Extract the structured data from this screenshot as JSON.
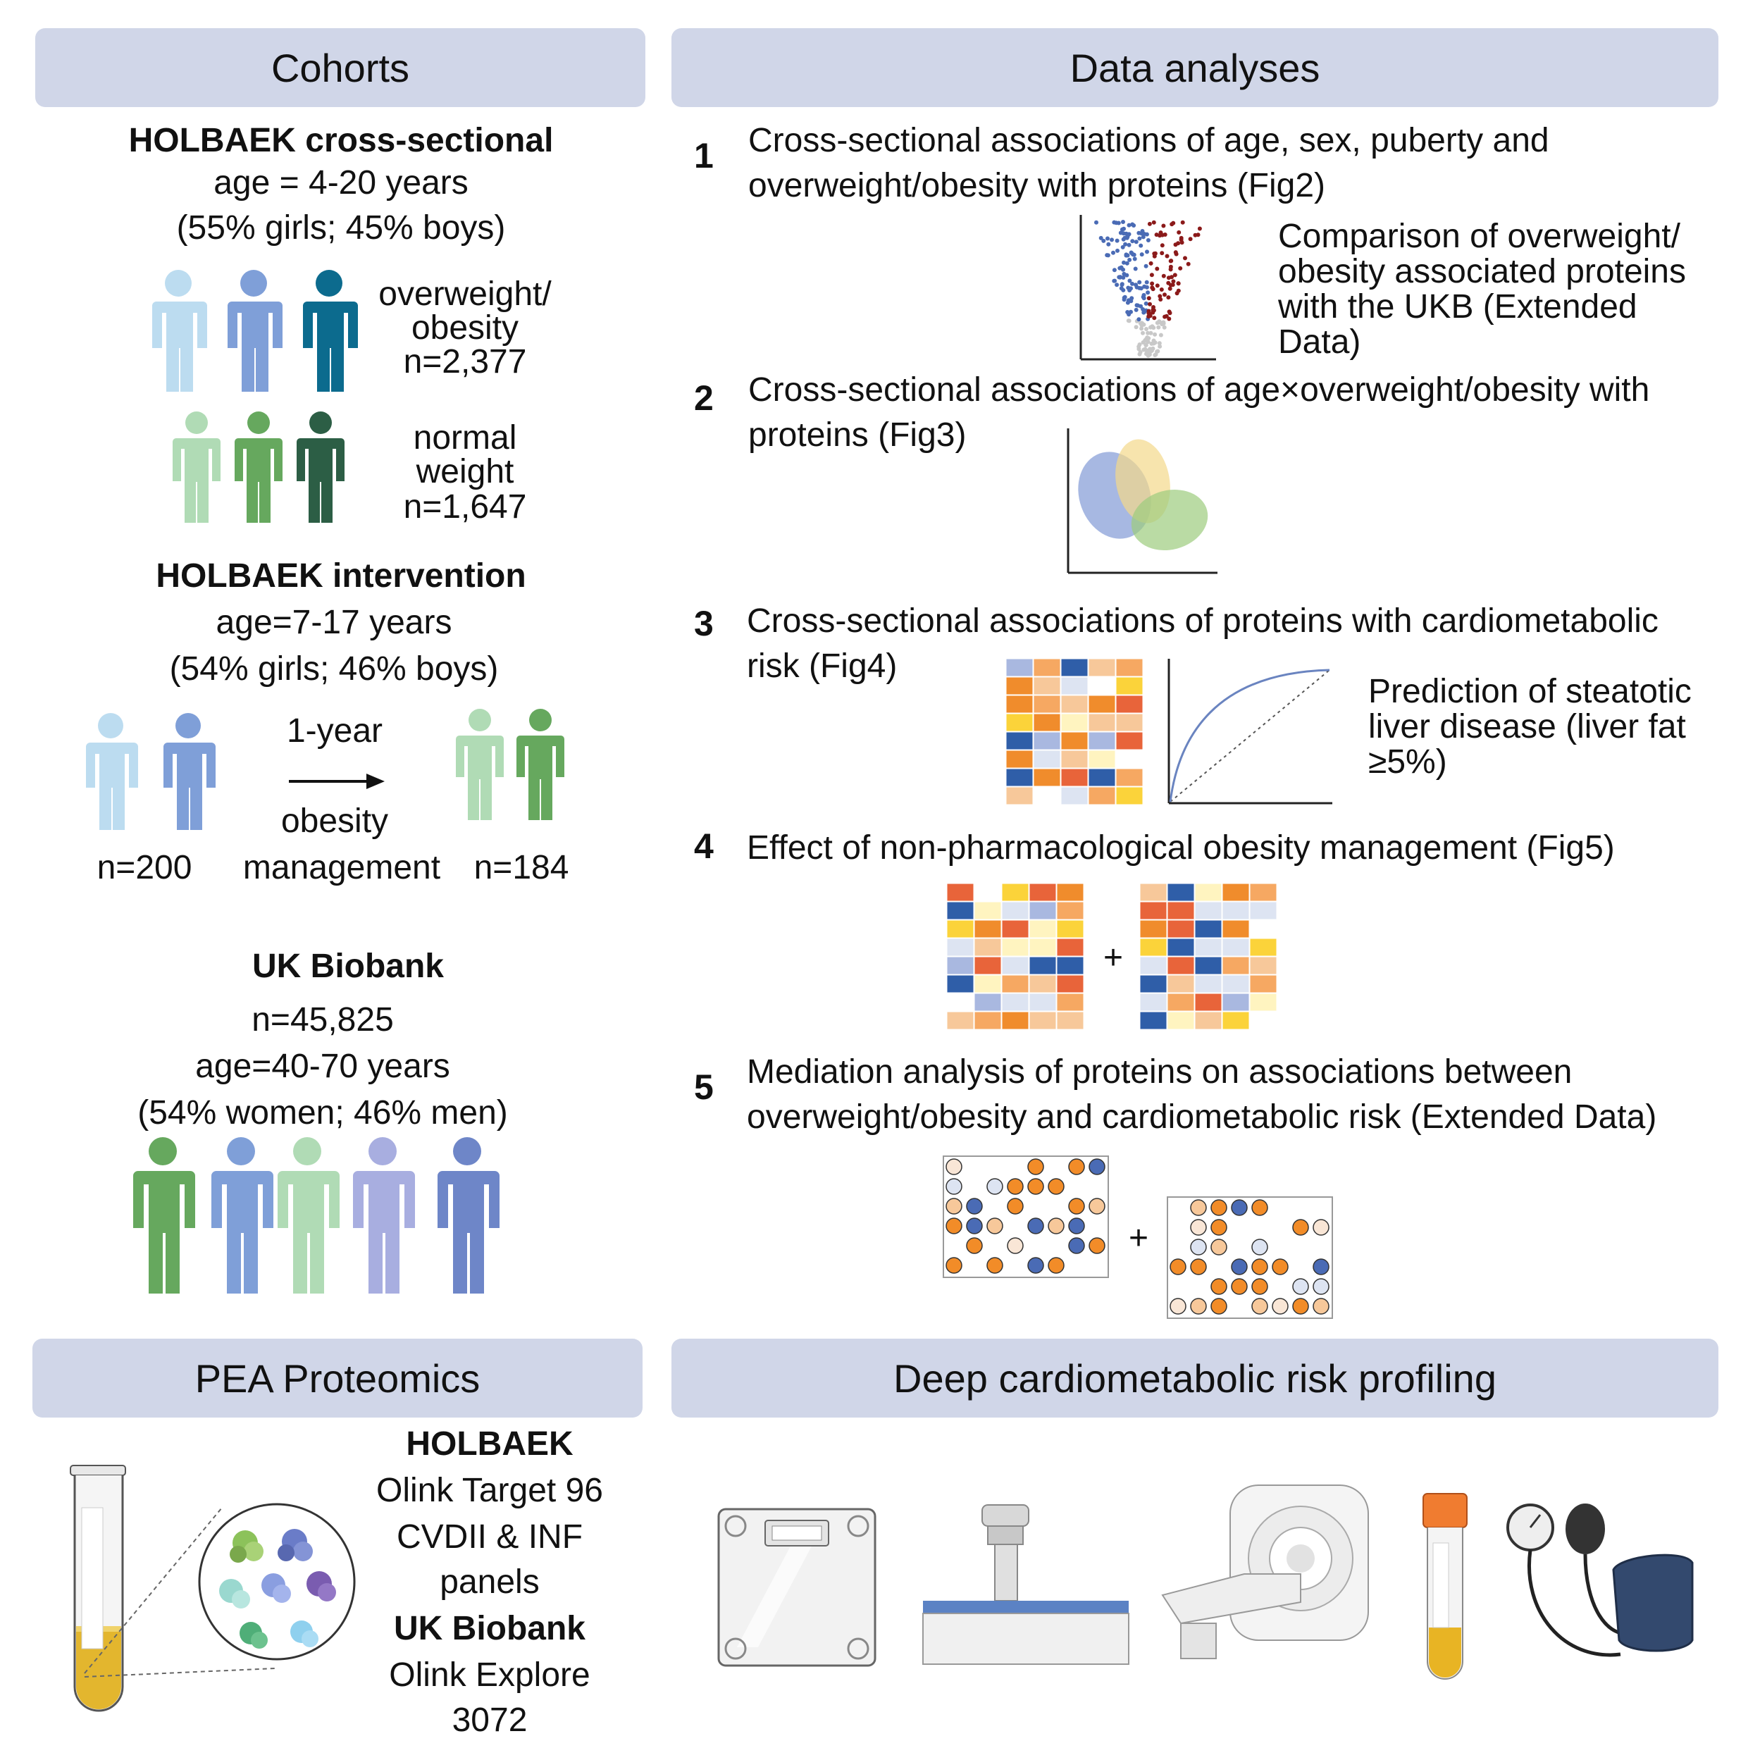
{
  "headers": {
    "cohorts": "Cohorts",
    "analyses": "Data analyses",
    "proteomics": "PEA Proteomics",
    "profiling": "Deep cardiometabolic risk profiling"
  },
  "cross_sectional": {
    "title": "HOLBAEK cross-sectional",
    "age": "age = 4-20 years",
    "sex": "(55% girls; 45% boys)",
    "overweight_label1": "overweight/",
    "overweight_label2": "obesity",
    "overweight_n": "n=2,377",
    "normal_label1": "normal",
    "normal_label2": "weight",
    "normal_n": "n=1,647"
  },
  "intervention": {
    "title": "HOLBAEK intervention",
    "age": "age=7-17 years",
    "sex": "(54% girls; 46% boys)",
    "duration": "1-year",
    "label1": "obesity",
    "label2": "management",
    "n_before": "n=200",
    "n_after": "n=184"
  },
  "ukb": {
    "title": "UK Biobank",
    "n": "n=45,825",
    "age": "age=40-70 years",
    "sex": "(54% women; 46% men)"
  },
  "analyses": [
    {
      "num": "1",
      "line1": "Cross-sectional associations of age, sex, puberty and",
      "line2": "overweight/obesity with proteins (Fig2)"
    },
    {
      "num": "2",
      "line1": "Cross-sectional associations of age×overweight/obesity with",
      "line2": "proteins (Fig3)"
    },
    {
      "num": "3",
      "line1": "Cross-sectional associations of proteins with cardiometabolic",
      "line2": "risk (Fig4)"
    },
    {
      "num": "4",
      "line1": "Effect of non-pharmacological obesity management (Fig5)",
      "line2": ""
    },
    {
      "num": "5",
      "line1": "Mediation analysis of proteins on associations between",
      "line2": "overweight/obesity and cardiometabolic risk (Extended Data)"
    }
  ],
  "notes": {
    "ukb_compare": [
      "Comparison of overweight/",
      "obesity associated proteins",
      "with the UKB (Extended",
      "Data)"
    ],
    "steatotic": [
      "Prediction of steatotic",
      "liver disease (liver fat",
      "≥5%)"
    ],
    "plus": "+"
  },
  "proteomics": {
    "holbaek_title": "HOLBAEK",
    "holbaek_lines": [
      "Olink Target 96",
      "CVDII & INF",
      "panels"
    ],
    "ukb_title": "UK Biobank",
    "ukb_lines": [
      "Olink Explore",
      "3072"
    ]
  },
  "colors": {
    "header_bg": "#d0d6e8",
    "blue_dark": "#2f5ea8",
    "blue_light": "#dde4f2",
    "orange": "#f08c2c",
    "red": "#e8643a",
    "yellow": "#fbd33a",
    "peach": "#f7c89a",
    "volcano_red": "#8b1a1a",
    "volcano_blue": "#4a6bb5"
  }
}
